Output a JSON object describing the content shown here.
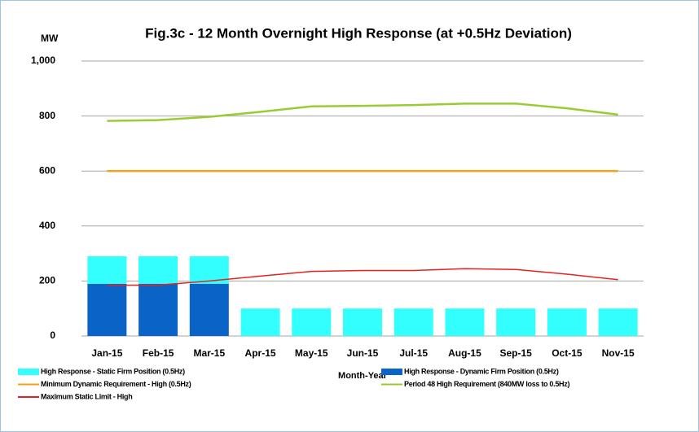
{
  "chart_data": {
    "type": "combo",
    "title": "Fig.3c - 12 Month Overnight High Response (at +0.5Hz Deviation)",
    "y_label": "MW",
    "x_label": "Month-Year",
    "categories": [
      "Jan-15",
      "Feb-15",
      "Mar-15",
      "Apr-15",
      "May-15",
      "Jun-15",
      "Jul-15",
      "Aug-15",
      "Sep-15",
      "Oct-15",
      "Nov-15"
    ],
    "ylim": [
      0,
      1000
    ],
    "yticks": [
      0,
      200,
      400,
      600,
      800,
      {
        "value": 1000,
        "label": "1,000"
      }
    ],
    "grid": true,
    "stacked": true,
    "series": [
      {
        "name": "High Response - Static Firm Position (0.5Hz)",
        "type": "bar",
        "color": "#33ffff",
        "values": [
          100,
          100,
          100,
          100,
          100,
          100,
          100,
          100,
          100,
          100,
          100
        ]
      },
      {
        "name": "High Response - Dynamic Firm Position (0.5Hz)",
        "type": "bar",
        "color": "#0a64c8",
        "values": [
          190,
          190,
          190,
          0,
          0,
          0,
          0,
          0,
          0,
          0,
          0
        ]
      },
      {
        "name": "Minimum Dynamic Requirement - High (0.5Hz)",
        "type": "line",
        "color": "#f7a11a",
        "values": [
          600,
          600,
          600,
          600,
          600,
          600,
          600,
          600,
          600,
          600,
          600
        ]
      },
      {
        "name": "Period 48 High Requirement (840MW loss to 0.5Hz)",
        "type": "line",
        "color": "#99cc33",
        "values": [
          782,
          785,
          797,
          815,
          835,
          837,
          840,
          845,
          845,
          828,
          805
        ]
      },
      {
        "name": "Maximum Static Limit - High",
        "type": "line",
        "color": "#e82020",
        "values": [
          185,
          185,
          200,
          218,
          235,
          238,
          238,
          245,
          242,
          225,
          205
        ]
      }
    ]
  }
}
